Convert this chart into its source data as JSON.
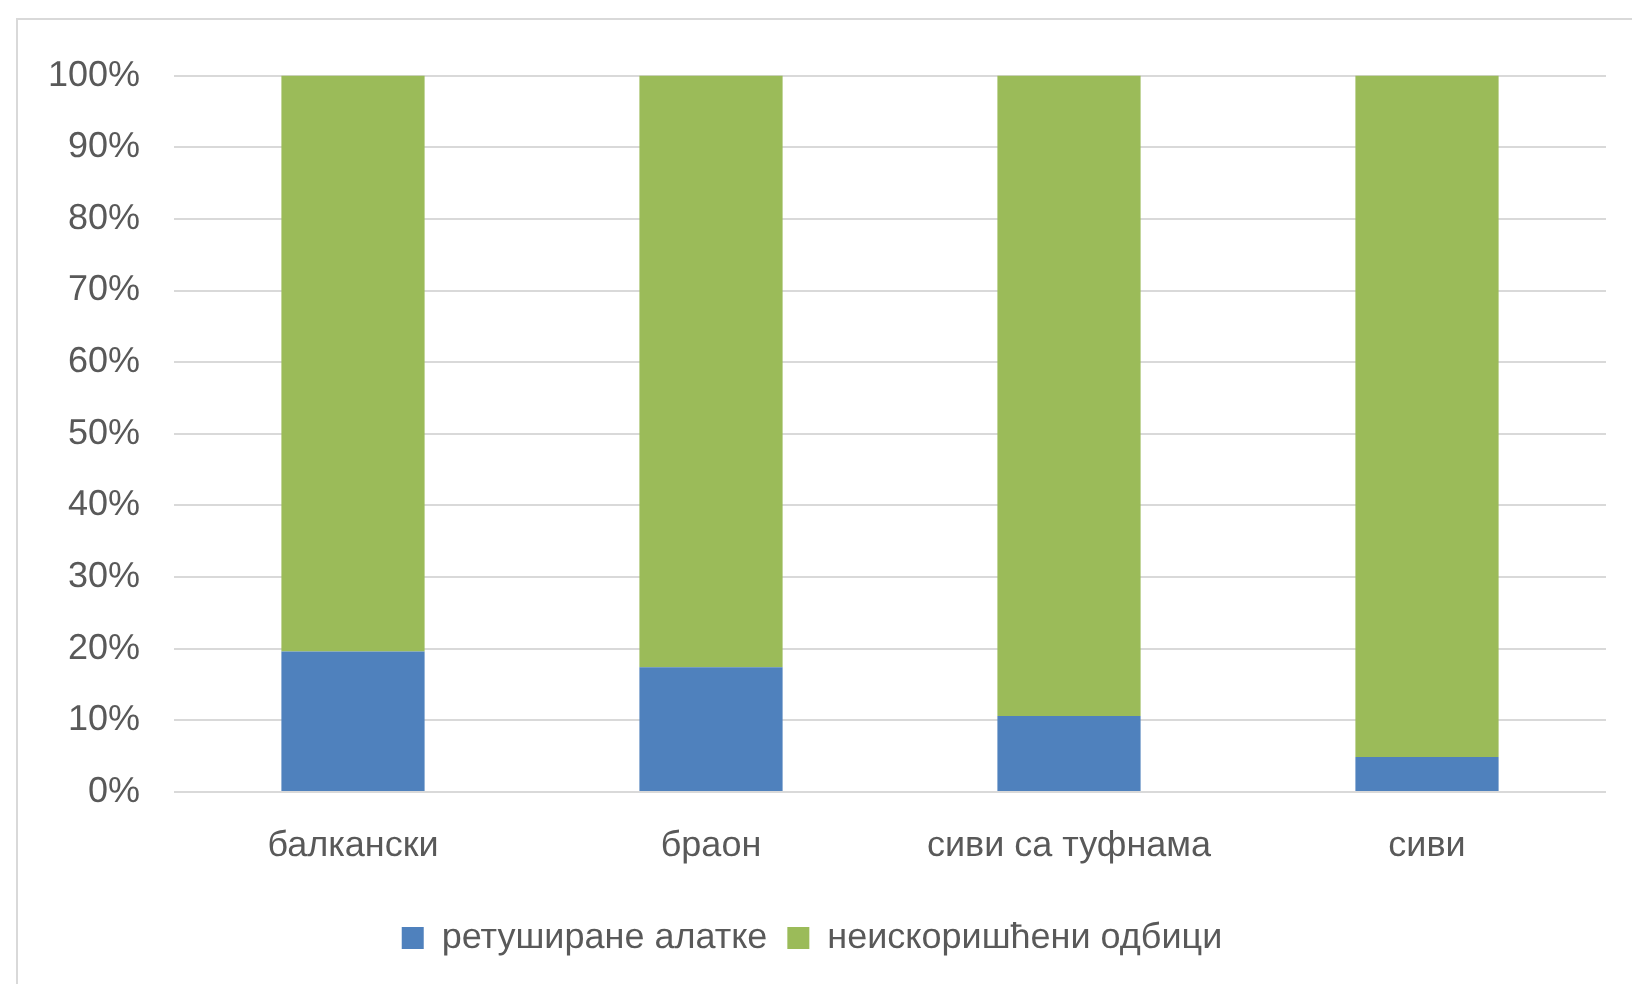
{
  "chart_data": {
    "type": "bar",
    "stacked": true,
    "categories": [
      "балкански",
      "браон",
      "сиви са туфнама",
      "сиви"
    ],
    "series": [
      {
        "name": "ретуширане алатке",
        "color": "#4f81bd",
        "values": [
          19.6,
          17.4,
          10.6,
          4.9
        ]
      },
      {
        "name": "неискоришћени одбици",
        "color": "#9bbb59",
        "values": [
          80.4,
          82.6,
          89.4,
          95.1
        ]
      }
    ],
    "ylim": [
      0,
      100
    ],
    "yticks": [
      {
        "value": 0,
        "label": "0%"
      },
      {
        "value": 10,
        "label": "10%"
      },
      {
        "value": 20,
        "label": "20%"
      },
      {
        "value": 30,
        "label": "30%"
      },
      {
        "value": 40,
        "label": "40%"
      },
      {
        "value": 50,
        "label": "50%"
      },
      {
        "value": 60,
        "label": "60%"
      },
      {
        "value": 70,
        "label": "70%"
      },
      {
        "value": 80,
        "label": "80%"
      },
      {
        "value": 90,
        "label": "90%"
      },
      {
        "value": 100,
        "label": "100%"
      }
    ],
    "grid": "y",
    "legend": "bottom"
  }
}
